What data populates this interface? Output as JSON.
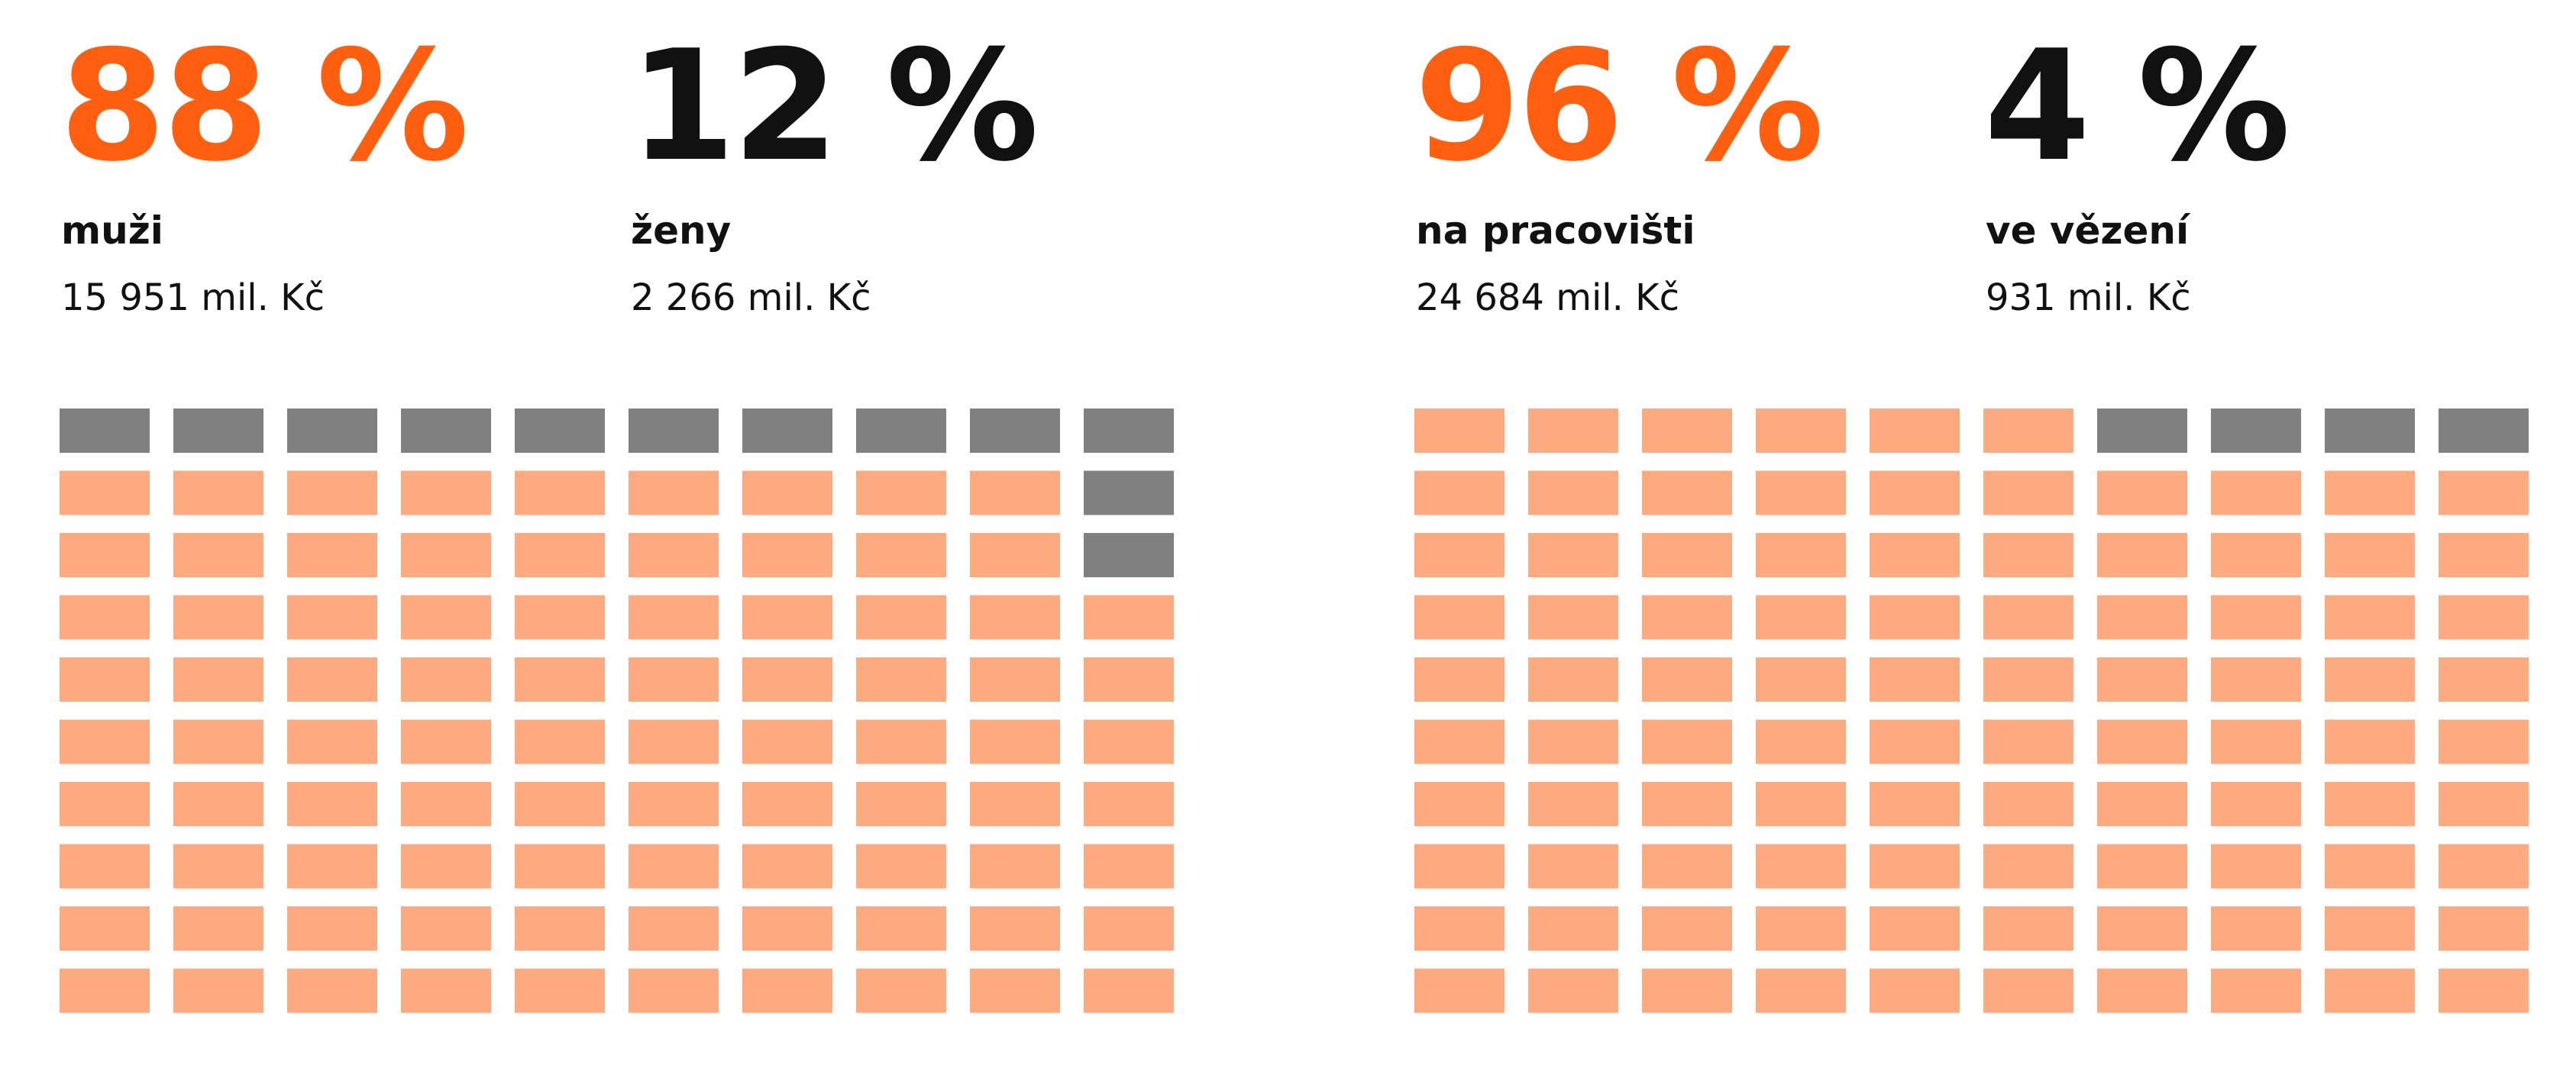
{
  "colors": {
    "accent": "#ff5f0f",
    "dark": "#111111",
    "cell_filled": "#fdaa80",
    "cell_empty": "#808080"
  },
  "panels": [
    {
      "stats": [
        {
          "percent": "88 %",
          "label": "muži",
          "amount": "15 951 mil. Kč",
          "color": "accent"
        },
        {
          "percent": "12 %",
          "label": "ženy",
          "amount": "2 266 mil. Kč",
          "color": "dark"
        }
      ]
    },
    {
      "stats": [
        {
          "percent": "96 %",
          "label": "na pracovišti",
          "amount": "24 684 mil. Kč",
          "color": "accent"
        },
        {
          "percent": "4 %",
          "label": "ve vězení",
          "amount": "931 mil. Kč",
          "color": "dark"
        }
      ]
    }
  ],
  "chart_data": [
    {
      "type": "waffle",
      "rows": 10,
      "cols": 10,
      "filled_percent": 88,
      "fill_order": "bottom-to-top, left-to-right",
      "series": [
        {
          "name": "muži",
          "value": 88,
          "amount": "15 951 mil. Kč",
          "color": "#fdaa80"
        },
        {
          "name": "ženy",
          "value": 12,
          "amount": "2 266 mil. Kč",
          "color": "#808080"
        }
      ]
    },
    {
      "type": "waffle",
      "rows": 10,
      "cols": 10,
      "filled_percent": 96,
      "fill_order": "top row from left, remainder at top-right",
      "series": [
        {
          "name": "na pracovišti",
          "value": 96,
          "amount": "24 684 mil. Kč",
          "color": "#fdaa80"
        },
        {
          "name": "ve vězení",
          "value": 4,
          "amount": "931 mil. Kč",
          "color": "#808080"
        }
      ]
    }
  ]
}
